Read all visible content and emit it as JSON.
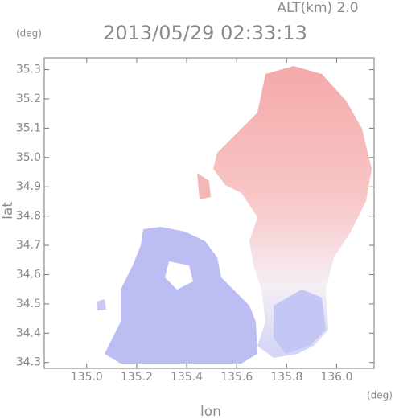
{
  "chart_data": {
    "type": "radar-field",
    "altitude_label": "ALT(km) 2.0",
    "title": "2013/05/29 02:33:13",
    "y_unit": "(deg)",
    "x_unit": "(deg)",
    "xlabel": "lon",
    "ylabel": "lat",
    "xlim": [
      134.83,
      136.15
    ],
    "ylim": [
      34.28,
      35.34
    ],
    "xticks": [
      {
        "value": 135,
        "label": "135.0"
      },
      135.2,
      135.4,
      135.6,
      135.8,
      {
        "value": 136,
        "label": "136.0"
      }
    ],
    "yticks": [
      34.3,
      34.4,
      34.5,
      34.6,
      34.7,
      34.8,
      34.9,
      {
        "value": 35,
        "label": "35.0"
      },
      35.1,
      35.2,
      35.3
    ]
  }
}
